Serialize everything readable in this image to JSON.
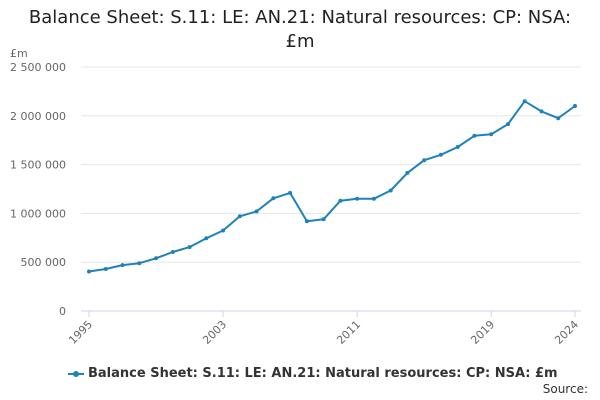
{
  "colors": {
    "series": "#1f82b8",
    "grid": "#e6e6e6",
    "axis": "#ccd6eb",
    "text": "#666666"
  },
  "chart_data": {
    "type": "line",
    "title": "Balance Sheet: S.11: LE: AN.21: Natural resources: CP: NSA: £m",
    "title_lines": [
      "Balance Sheet: S.11: LE: AN.21: Natural resources: CP: NSA:",
      "£m"
    ],
    "unit_label": "£m",
    "xlabel": "",
    "ylabel": "",
    "ylim": [
      0,
      2500000
    ],
    "yticks": [
      0,
      500000,
      1000000,
      1500000,
      2000000,
      2500000
    ],
    "ytick_labels": [
      "0",
      "500 000",
      "1 000 000",
      "1 500 000",
      "2 000 000",
      "2 500 000"
    ],
    "xlim": [
      1995,
      2024
    ],
    "xticks": [
      1995,
      2003,
      2011,
      2019,
      2024
    ],
    "xtick_labels": [
      "1995",
      "2003",
      "2011",
      "2019",
      "2024"
    ],
    "grid": true,
    "legend_position": "bottom-left",
    "x": [
      1995,
      1996,
      1997,
      1998,
      1999,
      2000,
      2001,
      2002,
      2003,
      2004,
      2005,
      2006,
      2007,
      2008,
      2009,
      2010,
      2011,
      2012,
      2013,
      2014,
      2015,
      2016,
      2017,
      2018,
      2019,
      2020,
      2021,
      2022,
      2023,
      2024
    ],
    "series": [
      {
        "name": "Balance Sheet: S.11: LE: AN.21: Natural resources: CP: NSA: £m",
        "values": [
          405000,
          430000,
          470000,
          490000,
          540000,
          605000,
          655000,
          745000,
          825000,
          970000,
          1020000,
          1155000,
          1210000,
          920000,
          940000,
          1130000,
          1150000,
          1150000,
          1235000,
          1415000,
          1545000,
          1600000,
          1680000,
          1795000,
          1810000,
          1915000,
          2150000,
          2045000,
          1975000,
          2100000
        ]
      }
    ]
  },
  "legend": {
    "label": "Balance Sheet: S.11: LE: AN.21: Natural resources: CP: NSA: £m"
  },
  "footer": {
    "source_label": "Source:"
  }
}
